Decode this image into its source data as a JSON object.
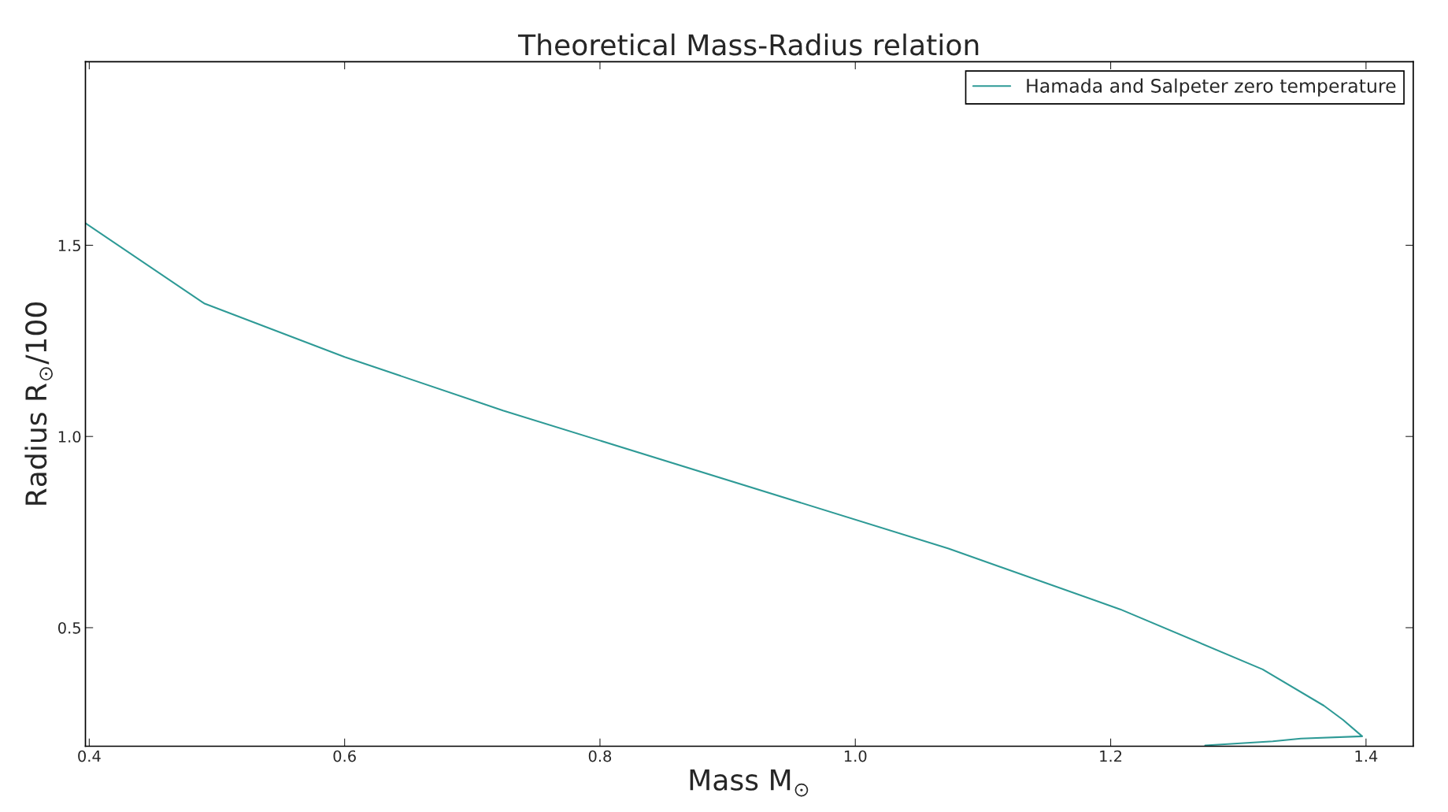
{
  "chart_data": {
    "type": "line",
    "title": "Theoretical Mass-Radius relation",
    "xlabel": "Mass M$_{⊙}$",
    "ylabel": "Radius R$_{⊙}$/100",
    "series": [
      {
        "name": "Hamada and Salpeter zero temperature",
        "color": "#2e9a96",
        "x": [
          0.397,
          0.49,
          0.6,
          0.724,
          1.073,
          1.2075,
          1.319,
          1.367,
          1.382,
          1.397,
          1.349,
          1.327,
          1.274
        ],
        "values": [
          1.558,
          1.348,
          1.208,
          1.068,
          0.707,
          0.548,
          0.391,
          0.296,
          0.259,
          0.216,
          0.21,
          0.203,
          0.192
        ]
      }
    ],
    "xlim": [
      0.397,
      1.437
    ],
    "ylim": [
      0.19,
      1.98
    ],
    "xticks": [
      0.4,
      0.6,
      0.8,
      {
        "value": 1,
        "label": "1.0"
      },
      1.2,
      1.4
    ],
    "yticks": [
      0.5,
      {
        "value": 1,
        "label": "1.0"
      },
      1.5
    ],
    "grid": false,
    "legend": "top right",
    "line_style": "solid",
    "marker": "none"
  }
}
